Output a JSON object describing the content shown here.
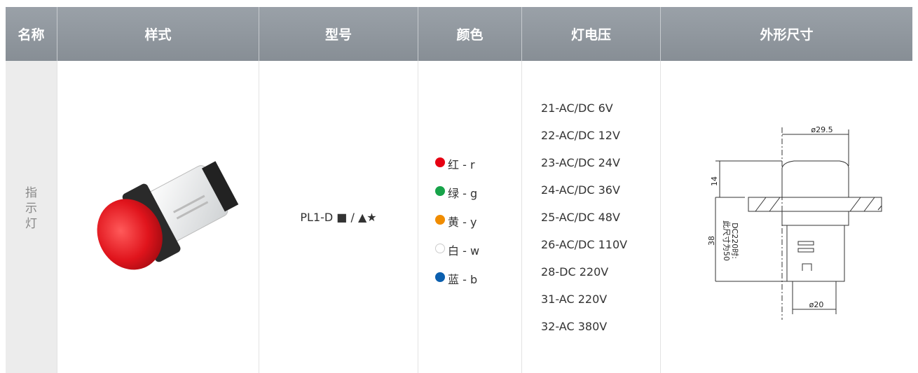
{
  "table": {
    "headers": [
      "名称",
      "样式",
      "型号",
      "颜色",
      "灯电压",
      "外形尺寸"
    ],
    "name": "指示灯",
    "model": "PL1-D ■ / ▲★",
    "colors": [
      {
        "dot": "#e60012",
        "label": "红 - r"
      },
      {
        "dot": "#17a349",
        "label": "绿 - g"
      },
      {
        "dot": "#f08c00",
        "label": "黄 - y"
      },
      {
        "dot": "#ffffff",
        "label": "白 - w"
      },
      {
        "dot": "#0b5fae",
        "label": "蓝 - b"
      }
    ],
    "voltages": [
      "21-AC/DC 6V",
      "22-AC/DC 12V",
      "23-AC/DC 24V",
      "24-AC/DC 36V",
      "25-AC/DC 48V",
      "26-AC/DC 110V",
      "28-DC 220V",
      "31-AC 220V",
      "32-AC 380V"
    ],
    "drawing": {
      "top_diameter": "ø29.5",
      "cap_height": "14",
      "body_height": "38",
      "note_1": "DC220时:",
      "note_2": "此尺寸为50",
      "bottom_diameter": "ø20"
    }
  }
}
